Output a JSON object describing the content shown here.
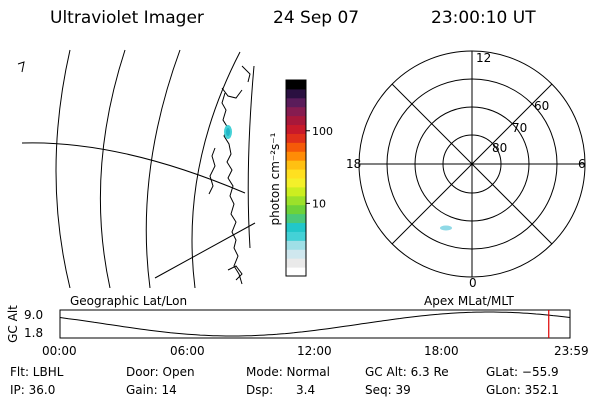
{
  "header": {
    "instrument": "Ultraviolet Imager",
    "date": "24 Sep 07",
    "time": "23:00:10 UT"
  },
  "colorbar": {
    "label": "photon cm⁻²s⁻¹",
    "ticks": [
      {
        "label": "100",
        "value": 100
      },
      {
        "label": "10",
        "value": 10
      }
    ],
    "colors": [
      "#ffffff",
      "#eaeaea",
      "#cfe7ee",
      "#9fdfe6",
      "#44d1d6",
      "#22c7c9",
      "#4ac97a",
      "#6dd23a",
      "#9ce12a",
      "#ccee20",
      "#f4f02a",
      "#ffe020",
      "#ffc012",
      "#ff8c06",
      "#f55a08",
      "#e0301a",
      "#c81a2a",
      "#a8183a",
      "#861c50",
      "#5a1c5a",
      "#2a1040",
      "#000000"
    ]
  },
  "polar": {
    "mlt_labels": [
      {
        "text": "12",
        "angle": 90
      },
      {
        "text": "18",
        "angle": 180
      },
      {
        "text": "6",
        "angle": 0
      },
      {
        "text": "0",
        "angle": 270
      }
    ],
    "lat_labels": [
      "60",
      "70",
      "80"
    ]
  },
  "timeline": {
    "ylabel": "GC Alt",
    "y_ticks": [
      "9.0",
      "1.8"
    ],
    "left_label": "Geographic Lat/Lon",
    "right_label": "Apex MLat/MLT",
    "x_ticks": [
      "00:00",
      "06:00",
      "12:00",
      "18:00",
      "23:59"
    ],
    "orbit_min_hour": 8.1,
    "orbit_max_hour": 20.2,
    "current_hour": 23.0
  },
  "footer": {
    "row1": {
      "flt": "Flt: LBHL",
      "door": "Door: Open",
      "mode": "Mode: Normal",
      "gcalt": "GC Alt: 6.3 Re",
      "glat": "GLat: −55.9"
    },
    "row2": {
      "ip": "IP: 36.0",
      "gain": "Gain: 14",
      "dsp": "Dsp:      3.4",
      "seq": "Seq: 39",
      "glon": "GLon: 352.1"
    }
  }
}
